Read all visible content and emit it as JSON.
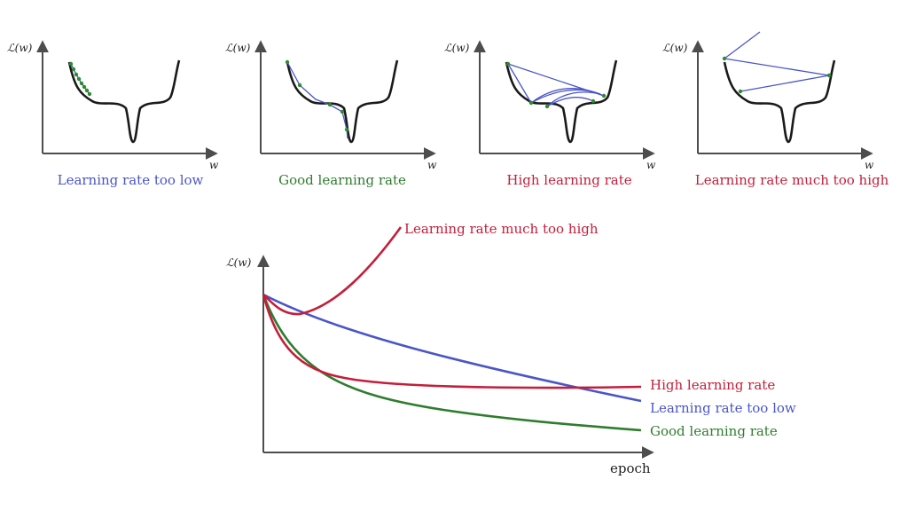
{
  "colors": {
    "blue": "#4a55c8",
    "green": "#2e7d2e",
    "red": "#c41e3a",
    "axis": "#4d4d4d",
    "loss_curve": "#1a1a1a",
    "points": "#2e8b2e"
  },
  "panels": [
    {
      "ylabel": "ℒ(w)",
      "xlabel": "w",
      "caption": "Learning rate too low"
    },
    {
      "ylabel": "ℒ(w)",
      "xlabel": "w",
      "caption": "Good learning rate"
    },
    {
      "ylabel": "ℒ(w)",
      "xlabel": "w",
      "caption": "High learning rate"
    },
    {
      "ylabel": "ℒ(w)",
      "xlabel": "w",
      "caption": "Learning rate much too high"
    }
  ],
  "bottom": {
    "ylabel": "ℒ(w)",
    "xlabel": "epoch",
    "series": [
      {
        "name": "Learning rate much too high"
      },
      {
        "name": "High learning rate"
      },
      {
        "name": "Learning rate too low"
      },
      {
        "name": "Good learning rate"
      }
    ]
  }
}
